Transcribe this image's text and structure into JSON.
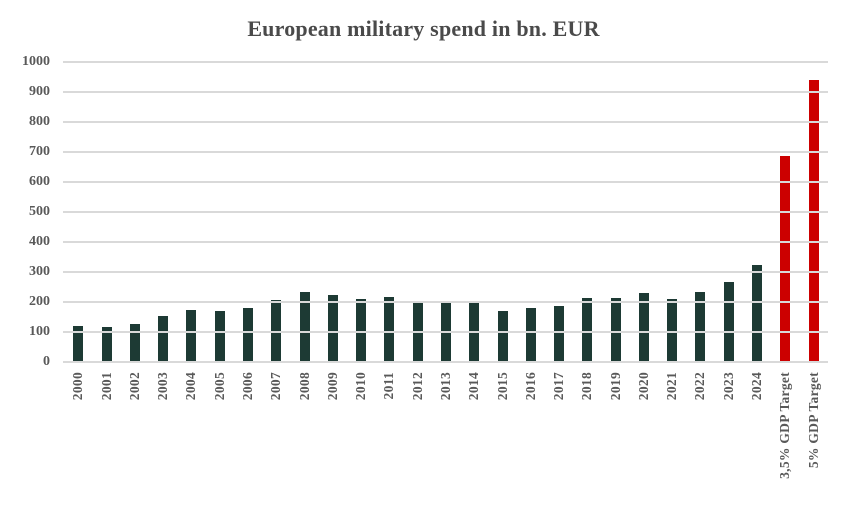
{
  "title": "European military spend in bn. EUR",
  "chart_data": {
    "type": "bar",
    "title": "European military spend in bn. EUR",
    "categories": [
      "2000",
      "2001",
      "2002",
      "2003",
      "2004",
      "2005",
      "2006",
      "2007",
      "2008",
      "2009",
      "2010",
      "2011",
      "2012",
      "2013",
      "2014",
      "2015",
      "2016",
      "2017",
      "2018",
      "2019",
      "2020",
      "2021",
      "2022",
      "2023",
      "2024",
      "3,5% GDP Target",
      "5% GDP Target"
    ],
    "values": [
      120,
      116,
      128,
      154,
      172,
      170,
      181,
      206,
      232,
      222,
      210,
      216,
      201,
      201,
      205,
      171,
      180,
      187,
      212,
      214,
      229,
      211,
      235,
      266,
      325,
      686,
      941
    ],
    "highlight_categories": [
      "3,5% GDP Target",
      "5% GDP Target"
    ],
    "xlabel": "",
    "ylabel": "",
    "ylim": [
      0,
      1000
    ],
    "yticks": [
      1000,
      900,
      800,
      700,
      600,
      500,
      400,
      300,
      200,
      100,
      0
    ],
    "grid": "horizontal",
    "legend": "none",
    "colors": {
      "bar_default": "#1d3a34",
      "bar_highlight": "#cc0000",
      "gridline": "#d9d9d9",
      "tick_text": "#595959",
      "title_text": "#4a4a4a",
      "background": "#ffffff"
    }
  }
}
